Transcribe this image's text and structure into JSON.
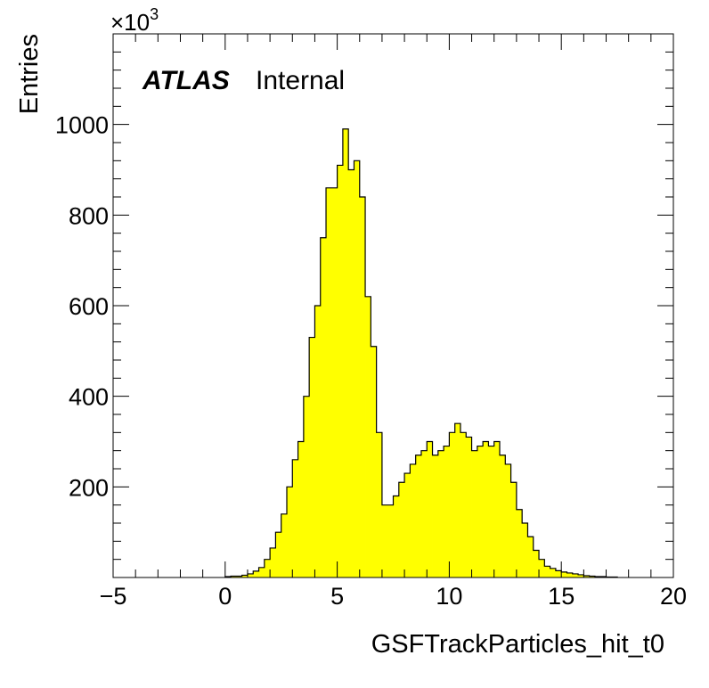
{
  "chart_data": {
    "type": "bar",
    "title": "",
    "xlabel": "GSFTrackParticles_hit_t0",
    "ylabel": "Entries",
    "y_exponent_label": "×10",
    "y_exponent_power": "3",
    "xlim": [
      -5,
      20
    ],
    "ylim": [
      0,
      1200
    ],
    "x_ticks": [
      -5,
      0,
      5,
      10,
      15,
      20
    ],
    "x_tick_labels": [
      "−5",
      "0",
      "5",
      "10",
      "15",
      "20"
    ],
    "y_ticks": [
      200,
      400,
      600,
      800,
      1000
    ],
    "y_tick_labels": [
      "200",
      "400",
      "600",
      "800",
      "1000"
    ],
    "annotation_bold": "ATLAS",
    "annotation_text": "Internal",
    "grid": false,
    "legend": "none",
    "bin_width": 0.25,
    "bin_edges_start": 0,
    "values": [
      2,
      3,
      3,
      5,
      8,
      14,
      22,
      40,
      65,
      100,
      140,
      200,
      260,
      300,
      400,
      530,
      600,
      750,
      860,
      860,
      910,
      990,
      900,
      920,
      840,
      620,
      510,
      320,
      160,
      160,
      180,
      210,
      230,
      250,
      270,
      280,
      300,
      270,
      280,
      290,
      320,
      340,
      320,
      310,
      280,
      290,
      300,
      290,
      300,
      270,
      250,
      210,
      150,
      120,
      90,
      60,
      40,
      25,
      20,
      15,
      12,
      10,
      8,
      6,
      4,
      3,
      2,
      2,
      1,
      1
    ],
    "fill_color": "#ffff00",
    "line_color": "#000000"
  }
}
